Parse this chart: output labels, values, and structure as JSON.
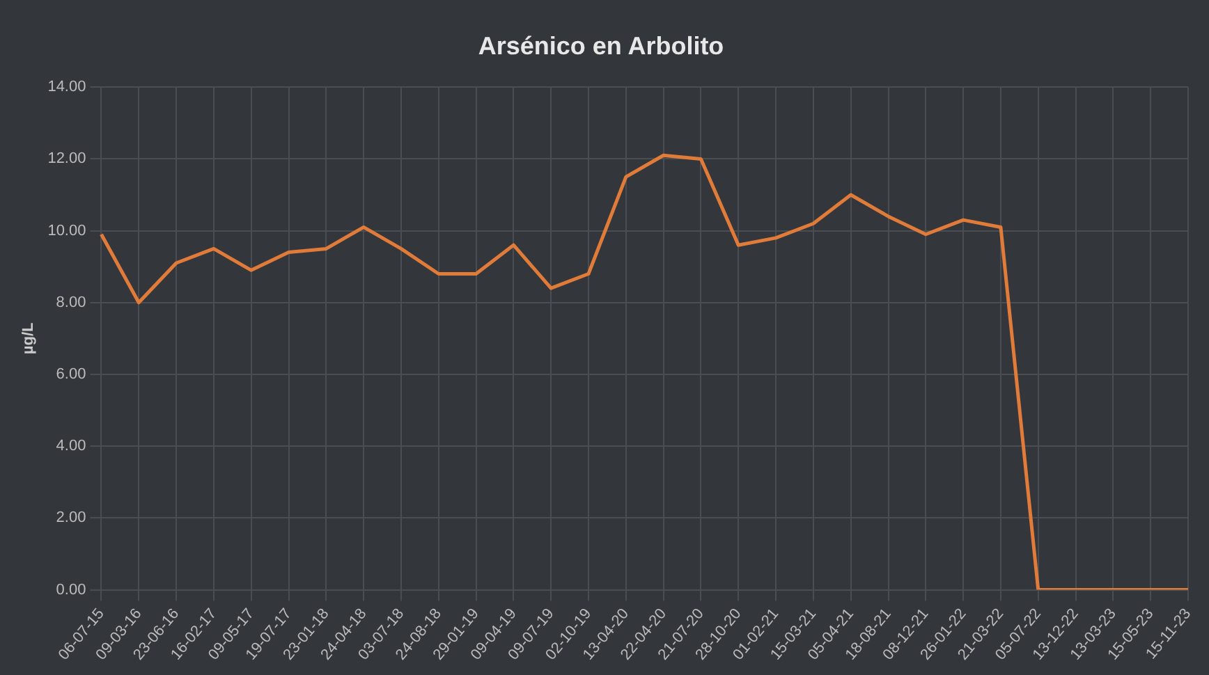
{
  "chart_data": {
    "type": "line",
    "title": "Arsénico en Arbolito",
    "ylabel": "µg/L",
    "categories": [
      "06-07-15",
      "09-03-16",
      "23-06-16",
      "16-02-17",
      "09-05-17",
      "19-07-17",
      "23-01-18",
      "24-04-18",
      "03-07-18",
      "24-08-18",
      "29-01-19",
      "09-04-19",
      "09-07-19",
      "02-10-19",
      "13-04-20",
      "22-04-20",
      "21-07-20",
      "28-10-20",
      "01-02-21",
      "15-03-21",
      "05-04-21",
      "18-08-21",
      "08-12-21",
      "26-01-22",
      "21-03-22",
      "05-07-22",
      "13-12-22",
      "13-03-23",
      "15-05-23",
      "15-11-23"
    ],
    "series": [
      {
        "color": "#e07b39",
        "values": [
          9.9,
          8.0,
          9.1,
          9.5,
          8.9,
          9.4,
          9.5,
          10.1,
          9.5,
          8.8,
          8.8,
          9.6,
          8.4,
          8.8,
          11.5,
          12.1,
          12.0,
          9.6,
          9.8,
          10.2,
          11.0,
          10.4,
          9.9,
          10.3,
          10.1,
          0,
          0,
          0,
          0,
          0
        ]
      }
    ],
    "ylim": [
      0,
      14
    ],
    "yticks": [
      {
        "value": 0,
        "label": "0.00"
      },
      {
        "value": 2,
        "label": "2.00"
      },
      {
        "value": 4,
        "label": "4.00"
      },
      {
        "value": 6,
        "label": "6.00"
      },
      {
        "value": 8,
        "label": "8.00"
      },
      {
        "value": 10,
        "label": "10.00"
      },
      {
        "value": 12,
        "label": "12.00"
      },
      {
        "value": 14,
        "label": "14.00"
      }
    ],
    "grid": true,
    "legend": false,
    "marker": "none",
    "line_style": "solid"
  }
}
